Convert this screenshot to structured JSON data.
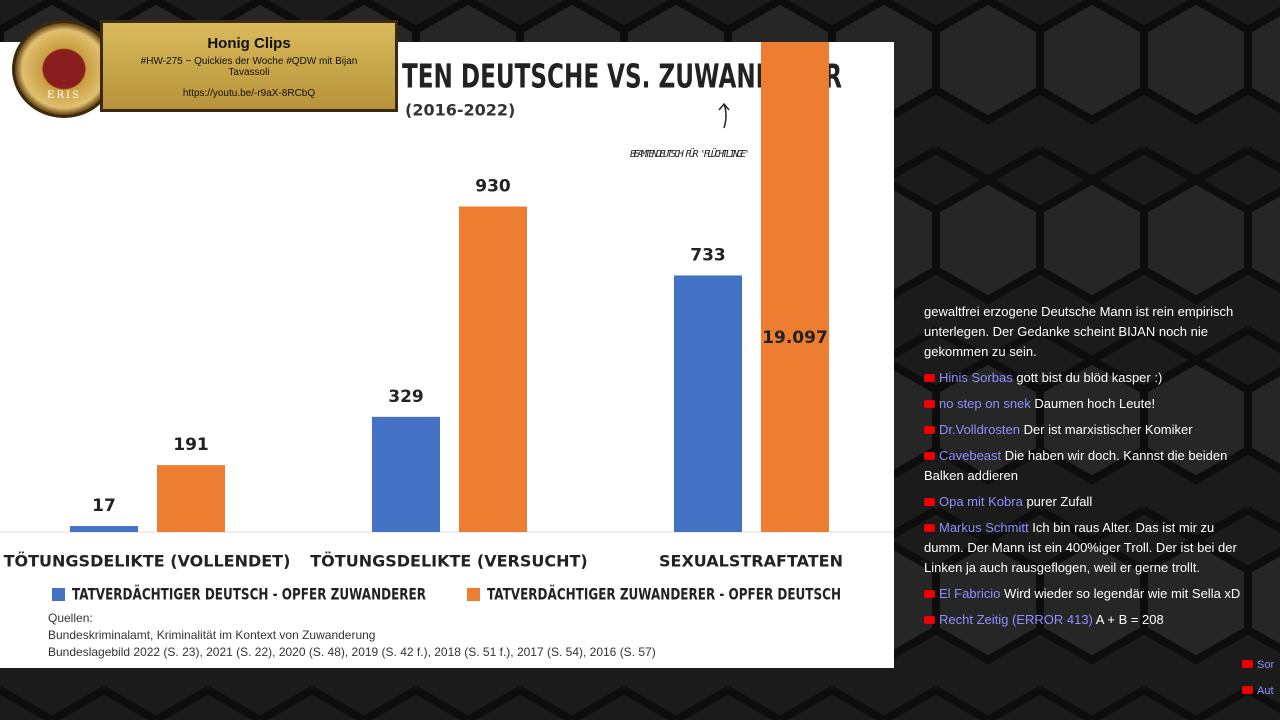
{
  "chart_data": {
    "type": "bar",
    "title": "TEN DEUTSCHE VS. ZUWANDERER",
    "subtitle": "(2016-2022)",
    "annotation": "BEAMTENDEUTSCH FÜR 'FLÜCHTLINGE'",
    "categories": [
      "TÖTUNGSDELIKTE (VOLLENDET)",
      "TÖTUNGSDELIKTE (VERSUCHT)",
      "SEXUALSTRAFTATEN"
    ],
    "series": [
      {
        "name": "TATVERDÄCHTIGER DEUTSCH - OPFER ZUWANDERER",
        "color": "#4472c4",
        "values": [
          17,
          329,
          733
        ]
      },
      {
        "name": "TATVERDÄCHTIGER ZUWANDERER - OPFER DEUTSCH",
        "color": "#ed7d31",
        "values": [
          191,
          930,
          19097
        ],
        "value_labels": [
          "191",
          "930",
          "19.097"
        ]
      }
    ],
    "ylim": [
      0,
      1400
    ],
    "sources": [
      "Quellen:",
      "Bundeskriminalamt, Kriminalität im Kontext von Zuwanderung",
      "Bundeslagebild 2022 (S. 23), 2021 (S. 22), 2020 (S. 48), 2019 (S. 42 f.), 2018 (S. 51 f.), 2017 (S. 54), 2016 (S. 57)"
    ]
  },
  "overlay": {
    "logo": "ERIS",
    "title": "Honig Clips",
    "subtitle": "#HW-275 ~ Quickies der Woche #QDW mit Bijan Tavassoli",
    "url": "https://youtu.be/-r9aX-8RCbQ"
  },
  "chat": [
    {
      "text": "gewaltfrei erzogene Deutsche Mann ist rein empirisch unterlegen. Der Gedanke scheint BIJAN noch nie gekommen zu sein."
    },
    {
      "user": "Hinis Sorbas",
      "text": "gott bist du blöd kasper :)"
    },
    {
      "user": "no step on snek",
      "text": "Daumen hoch Leute!"
    },
    {
      "user": "Dr.Volldrosten",
      "text": "Der ist marxistischer Komiker"
    },
    {
      "user": "Cavebeast",
      "text": "Die haben wir doch. Kannst die beiden Balken addieren"
    },
    {
      "user": "Opa mit Kobra",
      "text": "purer Zufall"
    },
    {
      "user": "Markus Schmitt",
      "text": "Ich bin raus Alter. Das ist mir zu dumm. Der Mann ist ein 400%iger Troll. Der ist bei der Linken ja auch rausgeflogen, weil er gerne trollt."
    },
    {
      "user": "El Fabricio",
      "text": "Wird wieder so legendär wie mit Sella xD"
    },
    {
      "user": "Recht Zeitig (ERROR 413)",
      "text": "A + B = 208"
    }
  ],
  "chat_edge": [
    "Sor",
    "Aut"
  ]
}
